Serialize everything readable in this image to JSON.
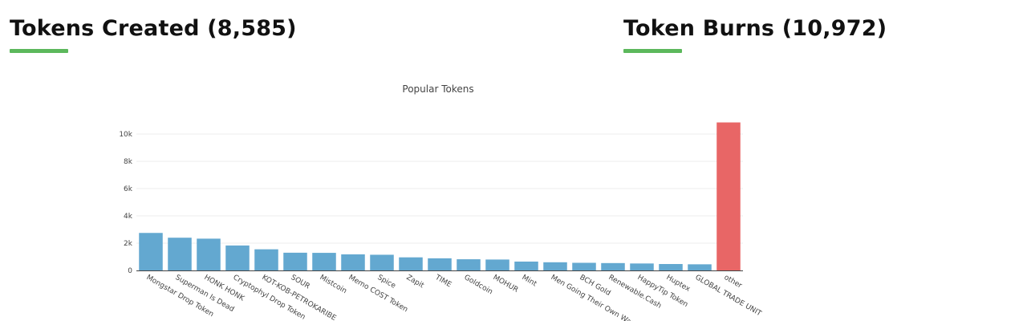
{
  "sections": {
    "created": {
      "title": "Tokens Created",
      "count": "8,585"
    },
    "burns": {
      "title": "Token Burns",
      "count": "10,972"
    }
  },
  "colors": {
    "accent_underline": "#5cb85c",
    "bar": "#63a8d0",
    "other_bar": "#e86666"
  },
  "chart_data": {
    "type": "bar",
    "title": "Popular Tokens",
    "xlabel": "",
    "ylabel": "",
    "ylim": [
      0,
      11000
    ],
    "yticks": [
      0,
      2000,
      4000,
      6000,
      8000,
      10000
    ],
    "ytick_labels": [
      "0",
      "2k",
      "4k",
      "6k",
      "8k",
      "10k"
    ],
    "grid": true,
    "legend": "none",
    "categories": [
      "Mongstar Drop Token",
      "Superman Is Dead",
      "HONK HONK",
      "Cryptophyl Drop Token",
      "KOT-KOB-PETROKARIBE",
      "SOUR",
      "Mistcoin",
      "Memo COST Token",
      "Spice",
      "Zapit",
      "TIME",
      "Goldcoin",
      "MOHUR",
      "Mint",
      "Men Going Their Own Way",
      "BCH Gold",
      "Renewable.Cash",
      "HappyTip Token",
      "Huptex",
      "GLOBAL TRADE UNIT",
      "other"
    ],
    "values": [
      2750,
      2400,
      2330,
      1830,
      1550,
      1300,
      1290,
      1180,
      1150,
      960,
      890,
      820,
      800,
      650,
      600,
      560,
      540,
      510,
      470,
      450,
      10850
    ]
  }
}
